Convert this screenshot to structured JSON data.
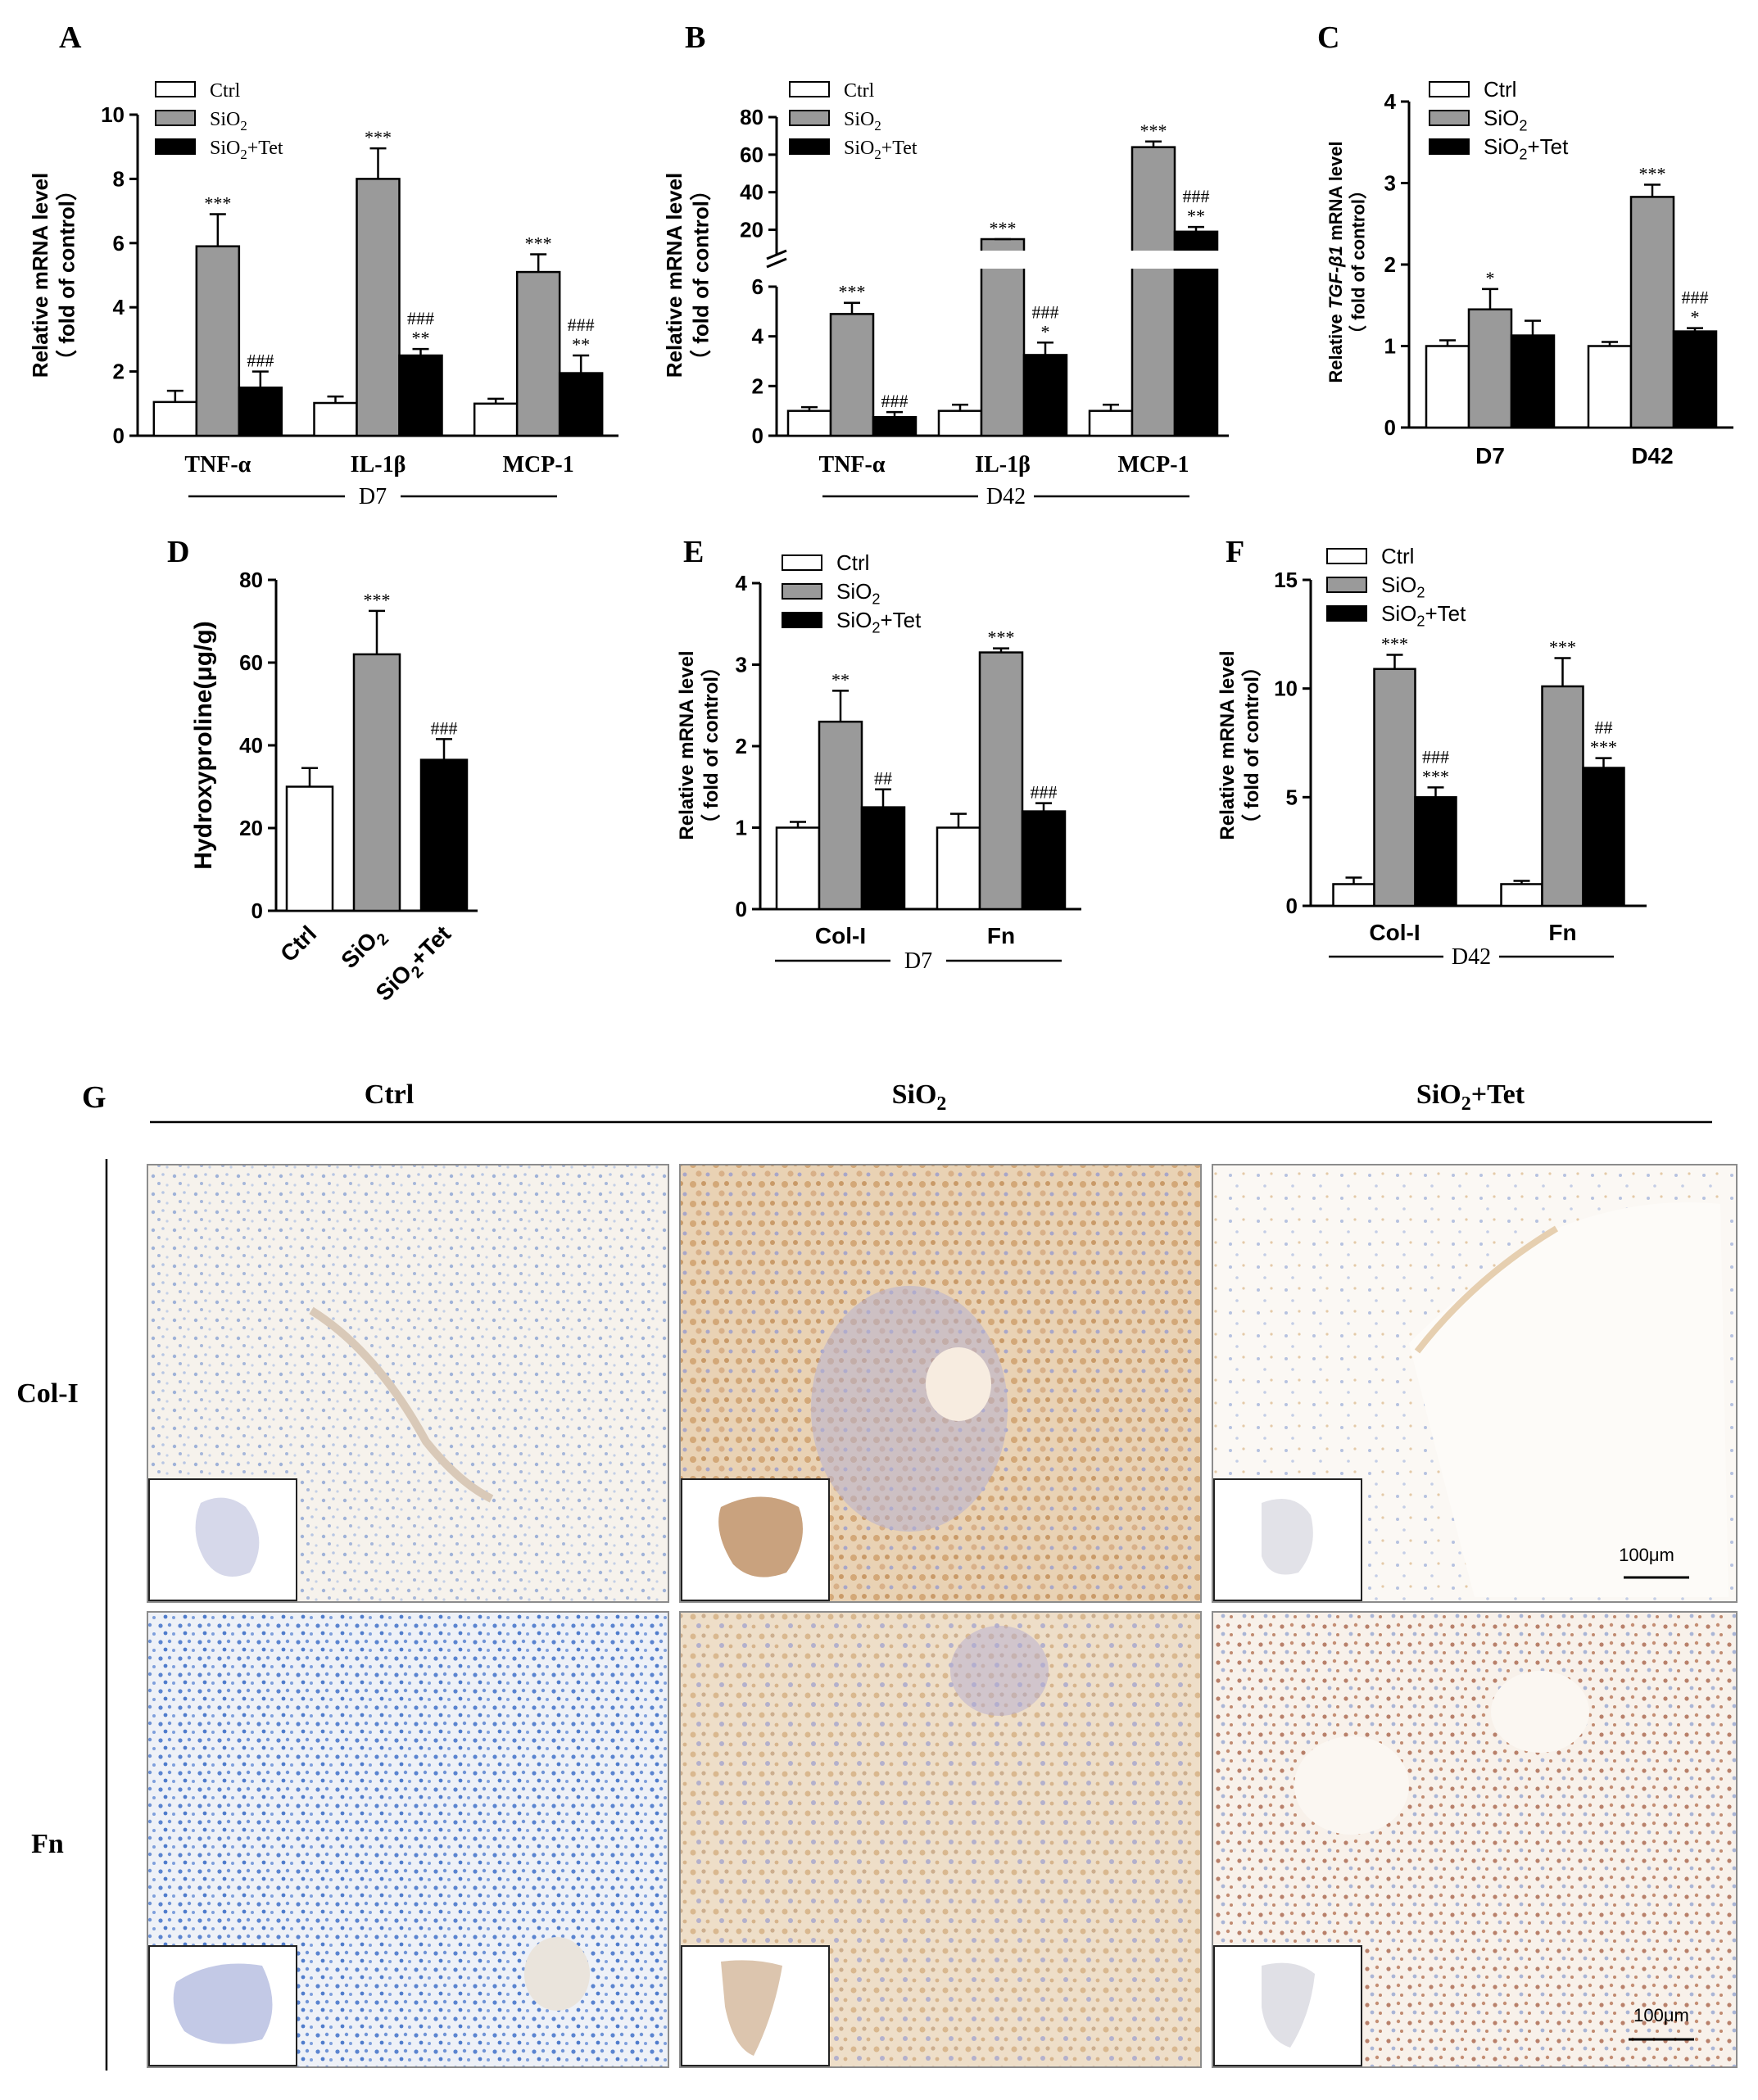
{
  "panel_letters": {
    "A": "A",
    "B": "B",
    "C": "C",
    "D": "D",
    "E": "E",
    "F": "F",
    "G": "G"
  },
  "colors": {
    "ctrl": "#ffffff",
    "sio2": "#9a9a9a",
    "tet": "#000000"
  },
  "legend": {
    "ctrl": "Ctrl",
    "sio2": "SiO",
    "sio2_sub": "2",
    "tet": "SiO",
    "tet_sub": "2",
    "tet_suffix": "+Tet"
  },
  "group_labels": {
    "D7": "D7",
    "D42": "D42"
  },
  "chart_data": [
    {
      "panel": "A",
      "type": "bar",
      "ylabel": "Relative  mRNA level",
      "ylabel2": "（ fold of control）",
      "ylim": [
        0,
        10
      ],
      "yticks": [
        0,
        2,
        4,
        6,
        8,
        10
      ],
      "categories": [
        "TNF-α",
        "IL-1β",
        "MCP-1"
      ],
      "group": "D7",
      "series": [
        {
          "name": "Ctrl",
          "values": [
            1.05,
            1.02,
            1.0
          ],
          "errors": [
            0.35,
            0.2,
            0.15
          ],
          "ann": [
            "",
            "",
            ""
          ]
        },
        {
          "name": "SiO2",
          "values": [
            5.9,
            8.0,
            5.1
          ],
          "errors": [
            1.0,
            0.95,
            0.55
          ],
          "ann": [
            "***",
            "***",
            "***"
          ]
        },
        {
          "name": "SiO2+Tet",
          "values": [
            1.5,
            2.5,
            1.95
          ],
          "errors": [
            0.5,
            0.2,
            0.55
          ],
          "ann": [
            "###",
            "###|**",
            "###|**"
          ]
        }
      ]
    },
    {
      "panel": "B",
      "type": "bar",
      "ylabel": "Relative  mRNA level",
      "ylabel2": "（ fold of control）",
      "yticks_low": [
        0,
        2,
        4,
        6
      ],
      "yticks_high": [
        20,
        40,
        60,
        80
      ],
      "axis_break": [
        6,
        15
      ],
      "categories": [
        "TNF-α",
        "IL-1β",
        "MCP-1"
      ],
      "group": "D42",
      "series": [
        {
          "name": "Ctrl",
          "values": [
            1.0,
            1.0,
            1.0
          ],
          "errors": [
            0.15,
            0.25,
            0.25
          ],
          "ann": [
            "",
            "",
            ""
          ]
        },
        {
          "name": "SiO2",
          "values": [
            4.9,
            11.5,
            64
          ],
          "errors": [
            0.45,
            1.0,
            3.0
          ],
          "ann": [
            "***",
            "***",
            "***"
          ]
        },
        {
          "name": "SiO2+Tet",
          "values": [
            0.75,
            3.25,
            19
          ],
          "errors": [
            0.2,
            0.5,
            2.5
          ],
          "ann": [
            "###",
            "###|*",
            "###|**"
          ]
        }
      ]
    },
    {
      "panel": "C",
      "type": "bar",
      "ylabel": "Relative",
      "ylabel_italic": "TGF-β1",
      "ylabel_tail": "mRNA level",
      "ylabel2": "（ fold of control）",
      "ylim": [
        0,
        4
      ],
      "yticks": [
        0,
        1,
        2,
        3,
        4
      ],
      "categories": [
        "D7",
        "D42"
      ],
      "series": [
        {
          "name": "Ctrl",
          "values": [
            1.0,
            1.0
          ],
          "errors": [
            0.07,
            0.05
          ],
          "ann": [
            "",
            ""
          ]
        },
        {
          "name": "SiO2",
          "values": [
            1.45,
            2.83
          ],
          "errors": [
            0.25,
            0.15
          ],
          "ann": [
            "*",
            "***"
          ]
        },
        {
          "name": "SiO2+Tet",
          "values": [
            1.13,
            1.18
          ],
          "errors": [
            0.18,
            0.04
          ],
          "ann": [
            "",
            "###|*"
          ]
        }
      ]
    },
    {
      "panel": "D",
      "type": "bar",
      "ylabel": "Hydroxyproline(μg/g)",
      "ylim": [
        0,
        80
      ],
      "yticks": [
        0,
        20,
        40,
        60,
        80
      ],
      "categories": [
        "Ctrl",
        "SiO2",
        "SiO2+Tet"
      ],
      "values": [
        30,
        62,
        36.5
      ],
      "errors": [
        4.5,
        10.5,
        5
      ],
      "ann": [
        "",
        "***",
        "###"
      ]
    },
    {
      "panel": "E",
      "type": "bar",
      "ylabel": "Relative  mRNA level",
      "ylabel2": "（ fold of control）",
      "ylim": [
        0,
        4
      ],
      "yticks": [
        0,
        1,
        2,
        3,
        4
      ],
      "categories": [
        "Col-I",
        "Fn"
      ],
      "group": "D7",
      "series": [
        {
          "name": "Ctrl",
          "values": [
            1.0,
            1.0
          ],
          "errors": [
            0.07,
            0.17
          ],
          "ann": [
            "",
            ""
          ]
        },
        {
          "name": "SiO2",
          "values": [
            2.3,
            3.15
          ],
          "errors": [
            0.38,
            0.05
          ],
          "ann": [
            "**",
            "***"
          ]
        },
        {
          "name": "SiO2+Tet",
          "values": [
            1.25,
            1.2
          ],
          "errors": [
            0.22,
            0.1
          ],
          "ann": [
            "##",
            "###"
          ]
        }
      ]
    },
    {
      "panel": "F",
      "type": "bar",
      "ylabel": "Relative  mRNA level",
      "ylabel2": "（ fold of control）",
      "ylim": [
        0,
        15
      ],
      "yticks": [
        0,
        5,
        10,
        15
      ],
      "categories": [
        "Col-I",
        "Fn"
      ],
      "group": "D42",
      "series": [
        {
          "name": "Ctrl",
          "values": [
            1.0,
            1.0
          ],
          "errors": [
            0.3,
            0.15
          ],
          "ann": [
            "",
            ""
          ]
        },
        {
          "name": "SiO2",
          "values": [
            10.9,
            10.1
          ],
          "errors": [
            0.65,
            1.3
          ],
          "ann": [
            "***",
            "***"
          ]
        },
        {
          "name": "SiO2+Tet",
          "values": [
            5.0,
            6.35
          ],
          "errors": [
            0.45,
            0.45
          ],
          "ann": [
            "###|***",
            "##|***"
          ]
        }
      ]
    }
  ],
  "histology": {
    "columns": [
      "Ctrl",
      "SiO",
      "+Tet"
    ],
    "col_sub": "2",
    "rows": [
      "Col-I",
      "Fn"
    ],
    "scalebar": "100μm"
  }
}
